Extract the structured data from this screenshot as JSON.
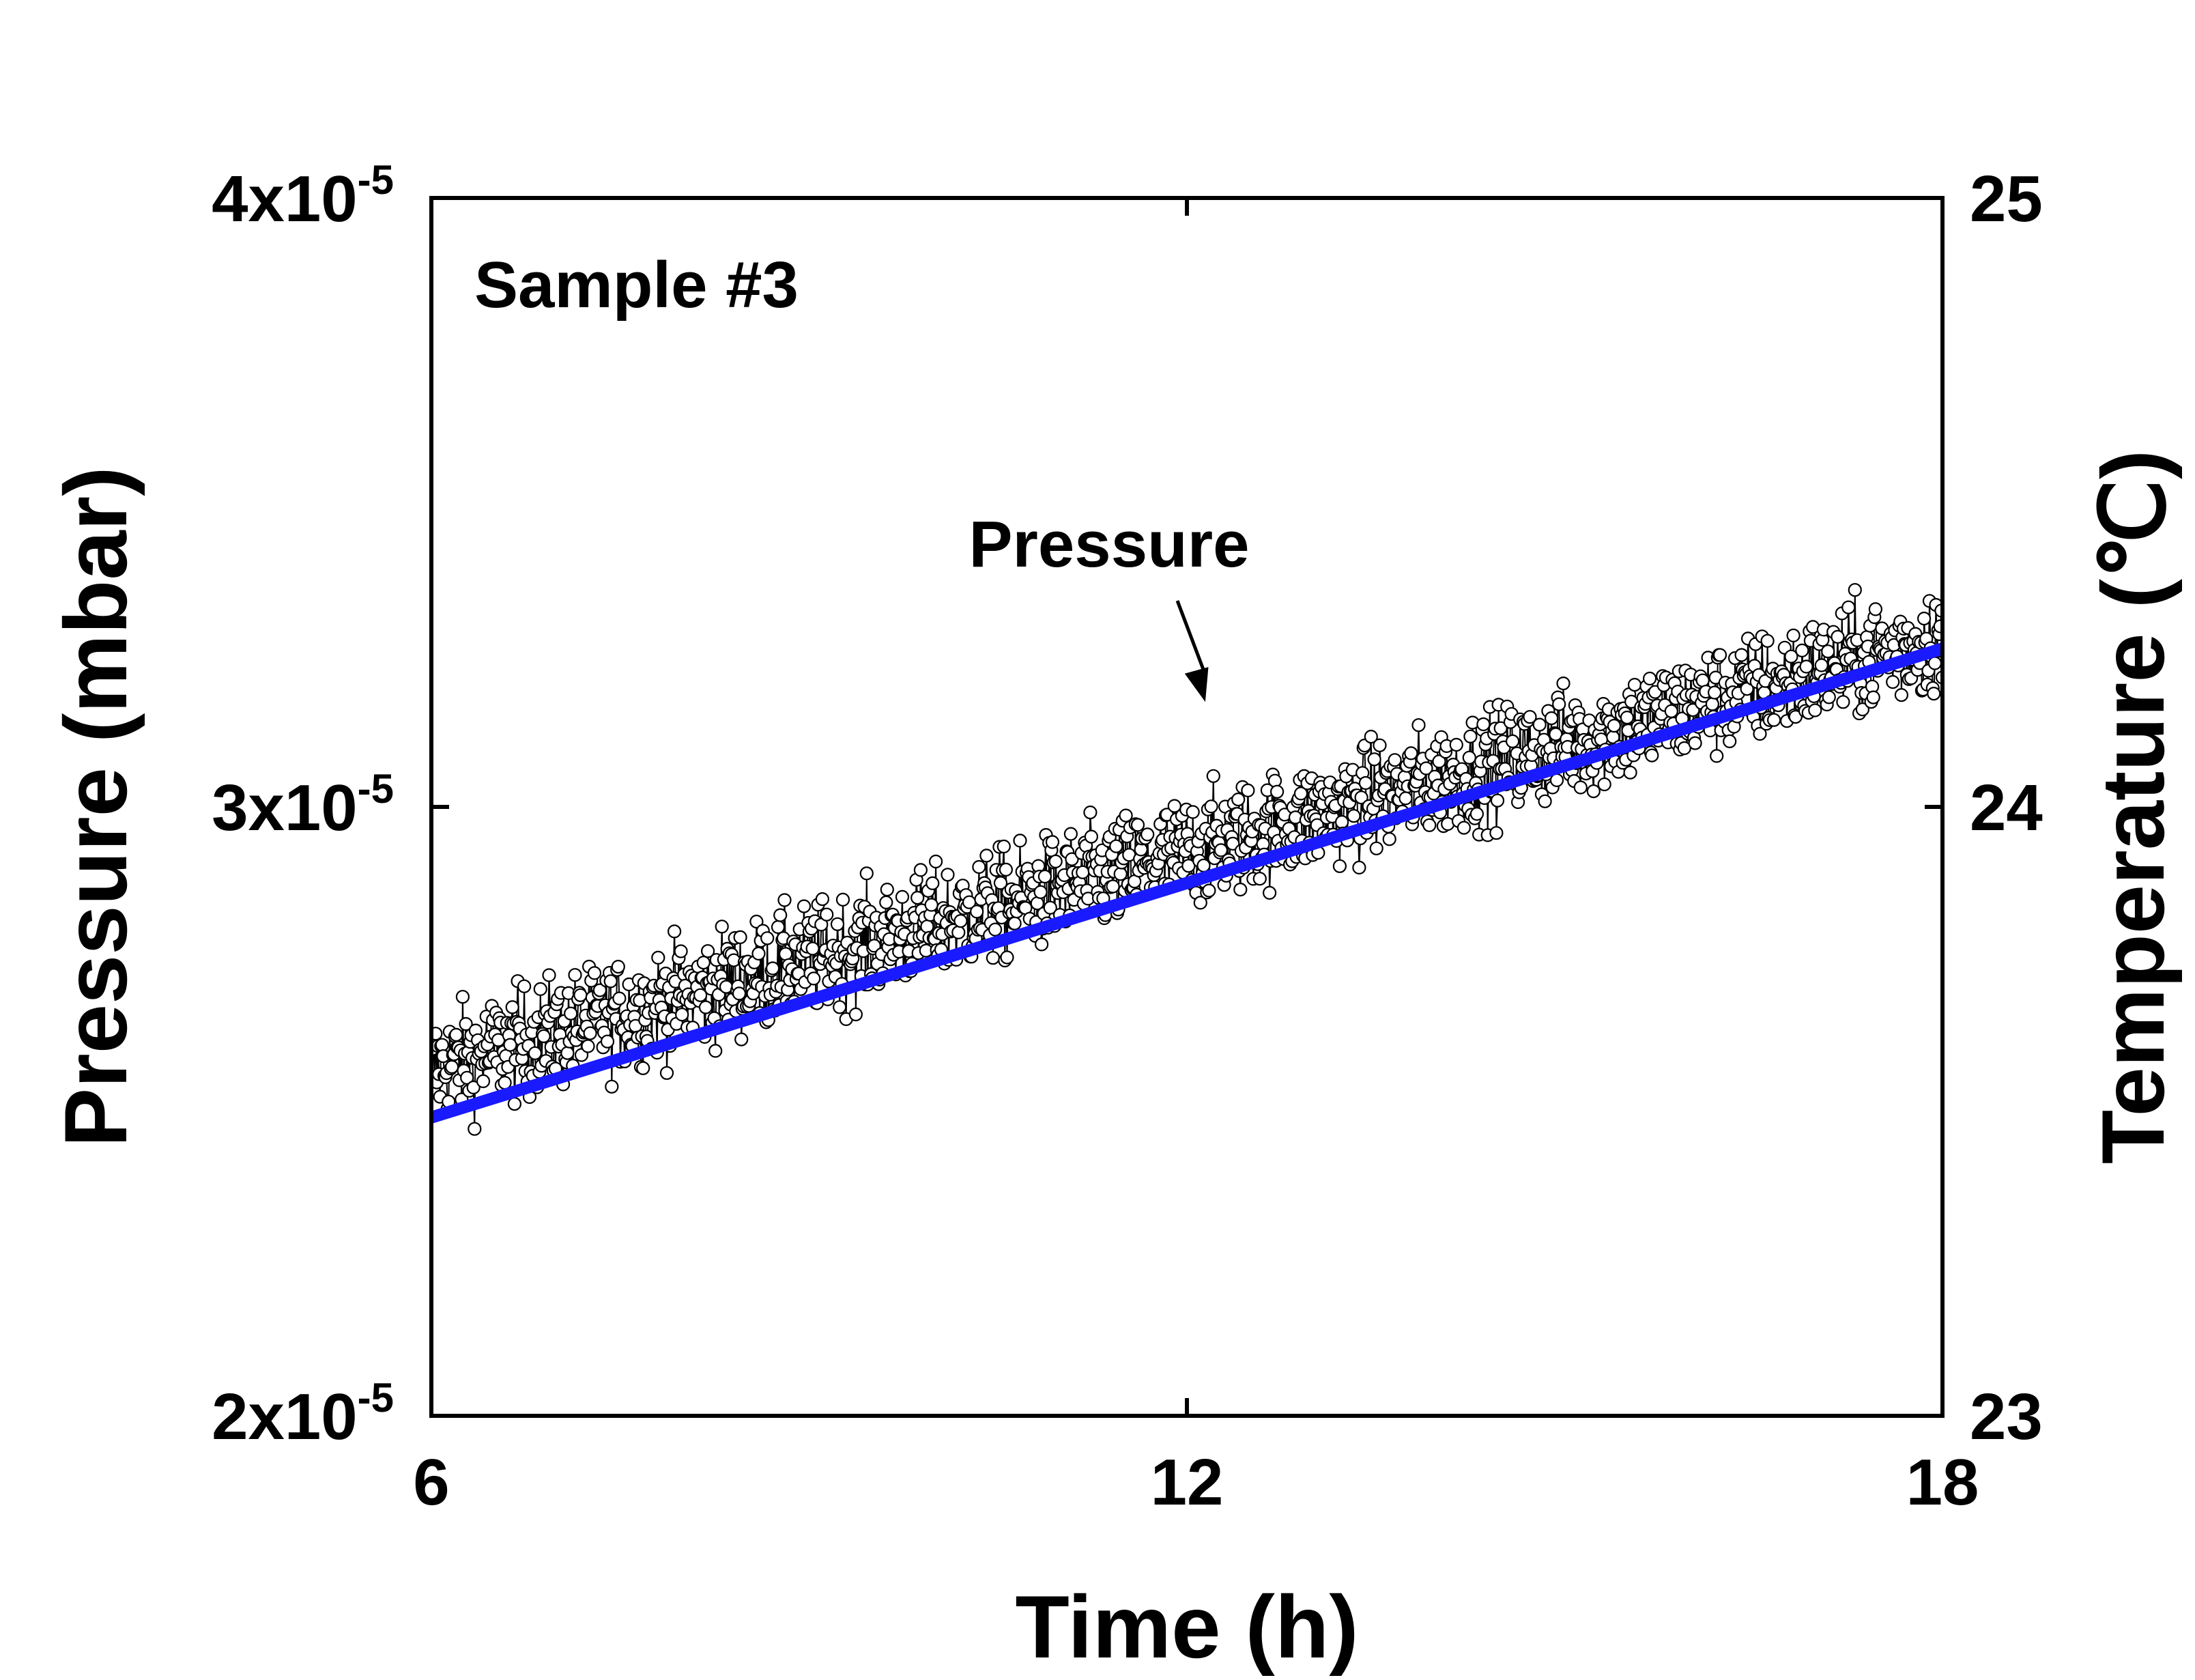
{
  "chart_data": {
    "type": "scatter",
    "title": "",
    "xlabel": "Time (h)",
    "ylabel_left": "Pressure (mbar)",
    "ylabel_right": "Temperature (℃)",
    "xlim": [
      6,
      18
    ],
    "ylim_left": [
      2e-05,
      4e-05
    ],
    "ylim_right": [
      23,
      25
    ],
    "x_ticks": [
      {
        "value": 6,
        "label": "6"
      },
      {
        "value": 12,
        "label": "12"
      },
      {
        "value": 18,
        "label": "18"
      }
    ],
    "y_left_ticks": [
      {
        "value": 2e-05,
        "mantissa": "2x10",
        "exponent": "-5"
      },
      {
        "value": 3e-05,
        "mantissa": "3x10",
        "exponent": "-5"
      },
      {
        "value": 4e-05,
        "mantissa": "4x10",
        "exponent": "-5"
      }
    ],
    "y_right_ticks": [
      {
        "value": 23,
        "label": "23"
      },
      {
        "value": 24,
        "label": "24"
      },
      {
        "value": 25,
        "label": "25"
      }
    ],
    "series": [
      {
        "name": "Pressure",
        "style": "open-circle-markers",
        "axis": "left",
        "trend_start": [
          6,
          2.57e-05
        ],
        "trend_end": [
          18,
          3.28e-05
        ],
        "noise_amplitude": 1e-06,
        "point_count": 1400,
        "color": "#000000"
      },
      {
        "name": "",
        "style": "line",
        "axis": "left",
        "points": [
          [
            6,
            2.49e-05
          ],
          [
            18,
            3.26e-05
          ]
        ],
        "color": "#1a1aff"
      }
    ],
    "annotations": [
      {
        "text": "Sample #3"
      },
      {
        "text": "Pressure",
        "arrow_to": [
          12.2,
          3.15e-05
        ]
      }
    ],
    "grid": false,
    "legend": "none"
  }
}
